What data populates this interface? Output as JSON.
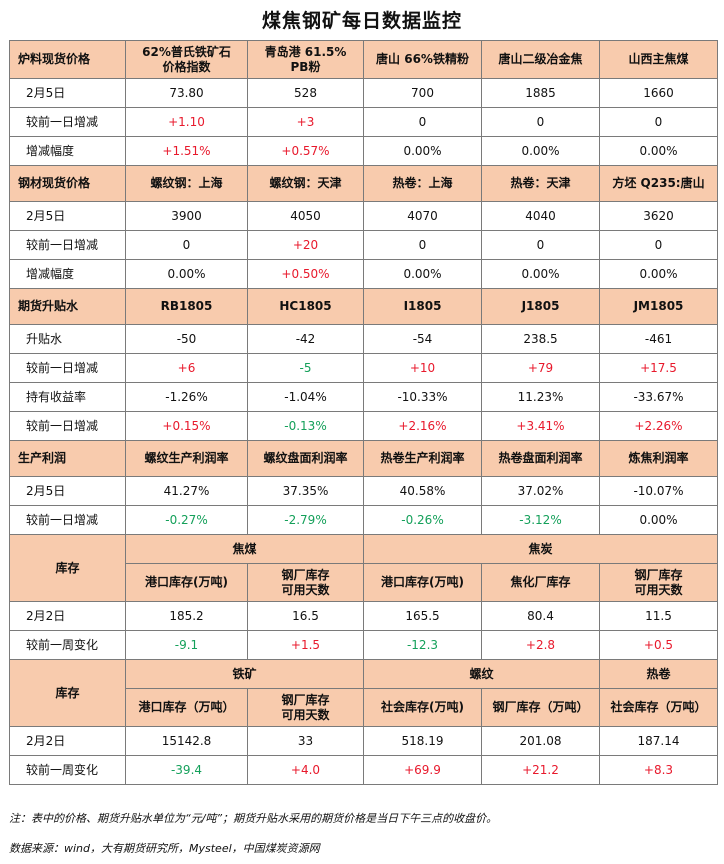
{
  "title": "煤焦钢矿每日数据监控",
  "s1": {
    "head": [
      "炉料现货价格",
      "62%普氏铁矿石\n价格指数",
      "青岛港 61.5%\nPB粉",
      "唐山 66%铁精粉",
      "唐山二级冶金焦",
      "山西主焦煤"
    ],
    "r1": [
      "2月5日",
      "73.80",
      "528",
      "700",
      "1885",
      "1660"
    ],
    "r2": [
      "较前一日增减",
      "+1.10",
      "+3",
      "0",
      "0",
      "0"
    ],
    "r3": [
      "增减幅度",
      "+1.51%",
      "+0.57%",
      "0.00%",
      "0.00%",
      "0.00%"
    ]
  },
  "s2": {
    "head": [
      "钢材现货价格",
      "螺纹钢：上海",
      "螺纹钢：天津",
      "热卷：上海",
      "热卷：天津",
      "方坯 Q235:唐山"
    ],
    "r1": [
      "2月5日",
      "3900",
      "4050",
      "4070",
      "4040",
      "3620"
    ],
    "r2": [
      "较前一日增减",
      "0",
      "+20",
      "0",
      "0",
      "0"
    ],
    "r3": [
      "增减幅度",
      "0.00%",
      "+0.50%",
      "0.00%",
      "0.00%",
      "0.00%"
    ]
  },
  "s3": {
    "head": [
      "期货升贴水",
      "RB1805",
      "HC1805",
      "I1805",
      "J1805",
      "JM1805"
    ],
    "r1": [
      "升贴水",
      "-50",
      "-42",
      "-54",
      "238.5",
      "-461"
    ],
    "r2": [
      "较前一日增减",
      "+6",
      "-5",
      "+10",
      "+79",
      "+17.5"
    ],
    "r3": [
      "持有收益率",
      "-1.26%",
      "-1.04%",
      "-10.33%",
      "11.23%",
      "-33.67%"
    ],
    "r4": [
      "较前一日增减",
      "+0.15%",
      "-0.13%",
      "+2.16%",
      "+3.41%",
      "+2.26%"
    ]
  },
  "s4": {
    "head": [
      "生产利润",
      "螺纹生产利润率",
      "螺纹盘面利润率",
      "热卷生产利润率",
      "热卷盘面利润率",
      "炼焦利润率"
    ],
    "r1": [
      "2月5日",
      "41.27%",
      "37.35%",
      "40.58%",
      "37.02%",
      "-10.07%"
    ],
    "r2": [
      "较前一日增减",
      "-0.27%",
      "-2.79%",
      "-0.26%",
      "-3.12%",
      "0.00%"
    ]
  },
  "s5": {
    "label": "库存",
    "group1": "焦煤",
    "group2": "焦炭",
    "sub": [
      "港口库存(万吨)",
      "钢厂库存\n可用天数",
      "港口库存(万吨)",
      "焦化厂库存",
      "钢厂库存\n可用天数"
    ],
    "r1": [
      "2月2日",
      "185.2",
      "16.5",
      "165.5",
      "80.4",
      "11.5"
    ],
    "r2": [
      "较前一周变化",
      "-9.1",
      "+1.5",
      "-12.3",
      "+2.8",
      "+0.5"
    ]
  },
  "s6": {
    "label": "库存",
    "group1": "铁矿",
    "group2": "螺纹",
    "group3": "热卷",
    "sub": [
      "港口库存（万吨）",
      "钢厂库存\n可用天数",
      "社会库存(万吨)",
      "钢厂库存（万吨）",
      "社会库存（万吨）"
    ],
    "r1": [
      "2月2日",
      "15142.8",
      "33",
      "518.19",
      "201.08",
      "187.14"
    ],
    "r2": [
      "较前一周变化",
      "-39.4",
      "+4.0",
      "+69.9",
      "+21.2",
      "+8.3"
    ]
  },
  "footer": {
    "note": "注：表中的价格、期货升贴水单位为“元/吨”；期货升贴水采用的期货价格是当日下午三点的收盘价。",
    "source": "数据来源：wind，大有期货研究所，Mysteel，中国煤炭资源网"
  },
  "colors": {
    "header_bg": "#f8cbad",
    "up": "#e8192c",
    "down": "#14a05a",
    "border": "#7a7a7a"
  }
}
